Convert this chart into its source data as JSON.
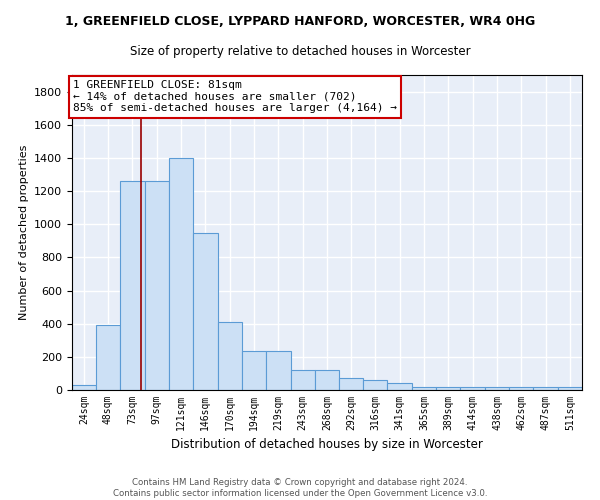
{
  "title_line1": "1, GREENFIELD CLOSE, LYPPARD HANFORD, WORCESTER, WR4 0HG",
  "title_line2": "Size of property relative to detached houses in Worcester",
  "xlabel": "Distribution of detached houses by size in Worcester",
  "ylabel": "Number of detached properties",
  "categories": [
    "24sqm",
    "48sqm",
    "73sqm",
    "97sqm",
    "121sqm",
    "146sqm",
    "170sqm",
    "194sqm",
    "219sqm",
    "243sqm",
    "268sqm",
    "292sqm",
    "316sqm",
    "341sqm",
    "365sqm",
    "389sqm",
    "414sqm",
    "438sqm",
    "462sqm",
    "487sqm",
    "511sqm"
  ],
  "bin_edges": [
    12,
    36,
    60,
    85,
    109,
    133,
    158,
    182,
    206,
    231,
    255,
    280,
    304,
    328,
    353,
    377,
    401,
    426,
    450,
    474,
    499,
    523
  ],
  "values": [
    30,
    390,
    1260,
    1260,
    1400,
    950,
    410,
    235,
    235,
    120,
    120,
    75,
    60,
    45,
    20,
    20,
    20,
    20,
    20,
    20,
    20
  ],
  "bar_color": "#cce0f5",
  "bar_edge_color": "#5b9bd5",
  "bg_color": "#e8eef8",
  "grid_color": "#ffffff",
  "red_line_x": 81,
  "annotation_text": "1 GREENFIELD CLOSE: 81sqm\n← 14% of detached houses are smaller (702)\n85% of semi-detached houses are larger (4,164) →",
  "annotation_box_color": "#ffffff",
  "annotation_box_edge": "#cc0000",
  "ylim": [
    0,
    1900
  ],
  "yticks": [
    0,
    200,
    400,
    600,
    800,
    1000,
    1200,
    1400,
    1600,
    1800
  ],
  "footer_line1": "Contains HM Land Registry data © Crown copyright and database right 2024.",
  "footer_line2": "Contains public sector information licensed under the Open Government Licence v3.0."
}
